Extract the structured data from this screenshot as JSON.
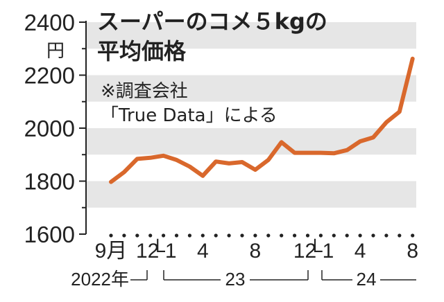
{
  "chart_data": {
    "type": "line",
    "title_line1": "スーパーのコメ５kgの",
    "title_line2": "平均価格",
    "note_line1": "※調査会社",
    "note_line2": "「True Data」による",
    "y_unit": "円",
    "ylim": [
      1600,
      2400
    ],
    "y_ticks": [
      "2400",
      "2200",
      "2000",
      "1800",
      "1600"
    ],
    "y_tick_values": [
      2400,
      2200,
      2000,
      1800,
      1600
    ],
    "grid_bands": true,
    "line_color": "#d9682c",
    "band_color": "#e6e6e6",
    "x_month_labels": [
      {
        "text": "9月",
        "i": 0
      },
      {
        "text": "12",
        "i": 3
      },
      {
        "text": "└1",
        "i": 4
      },
      {
        "text": "4",
        "i": 7
      },
      {
        "text": "8",
        "i": 11
      },
      {
        "text": "12",
        "i": 15
      },
      {
        "text": "└1",
        "i": 16
      },
      {
        "text": "4",
        "i": 19
      },
      {
        "text": "8",
        "i": 23
      }
    ],
    "x_year_labels": {
      "y2022": "2022年",
      "y2023": "23",
      "y2024": "24"
    },
    "x": [
      "2022-09",
      "2022-10",
      "2022-11",
      "2022-12",
      "2023-01",
      "2023-02",
      "2023-03",
      "2023-04",
      "2023-05",
      "2023-06",
      "2023-07",
      "2023-08",
      "2023-09",
      "2023-10",
      "2023-11",
      "2023-12",
      "2024-01",
      "2024-02",
      "2024-03",
      "2024-04",
      "2024-05",
      "2024-06",
      "2024-07",
      "2024-08"
    ],
    "values": [
      1797,
      1834,
      1884,
      1888,
      1896,
      1880,
      1855,
      1820,
      1874,
      1867,
      1872,
      1843,
      1880,
      1947,
      1907,
      1907,
      1907,
      1905,
      1917,
      1950,
      1965,
      2022,
      2062,
      2262
    ]
  }
}
